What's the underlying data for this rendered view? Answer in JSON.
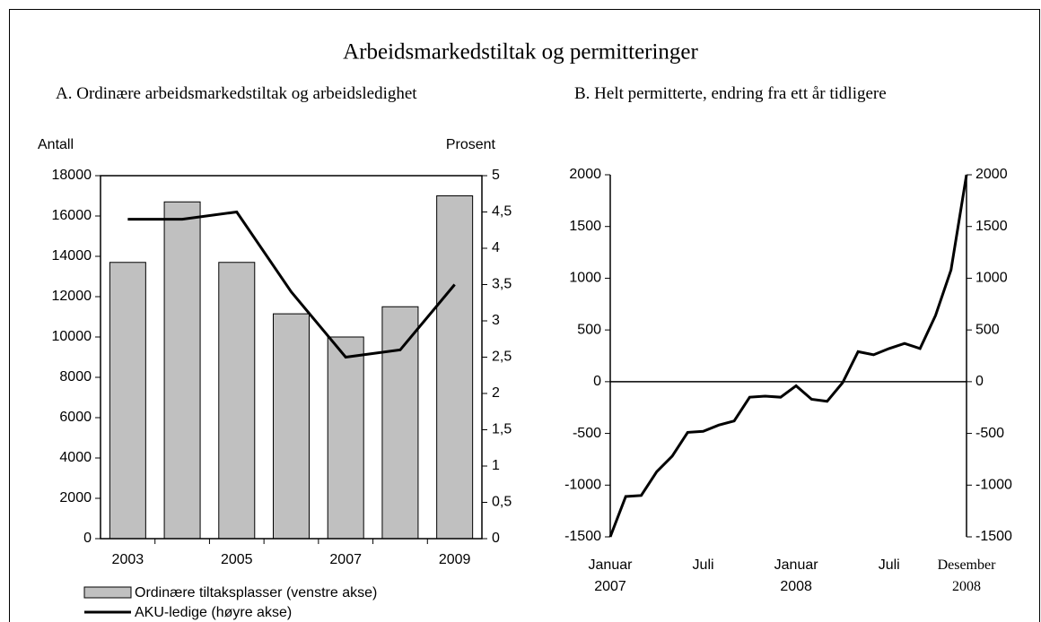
{
  "title": "Arbeidsmarkedstiltak og permitteringer",
  "chart_data": [
    {
      "type": "bar",
      "title": "A.  Ordinære arbeidsmarkedstiltak og arbeidsledighet",
      "ylabel": "Antall",
      "y2label": "Prosent",
      "categories": [
        "2003",
        null,
        "2005",
        null,
        "2007",
        null,
        "2009"
      ],
      "series": [
        {
          "name": "Ordinære tiltaksplasser (venstre akse)",
          "color": "#c0c0c0",
          "values": [
            13700,
            16700,
            13700,
            11150,
            10000,
            11500,
            17000
          ]
        },
        {
          "name": "AKU-ledige (høyre akse)",
          "color": "#000000",
          "axis": "y2",
          "values": [
            4.4,
            4.4,
            4.5,
            3.4,
            2.5,
            2.6,
            3.5
          ]
        }
      ],
      "ylim": [
        0,
        18000
      ],
      "yticks": [
        0,
        2000,
        4000,
        6000,
        8000,
        10000,
        12000,
        14000,
        16000,
        18000
      ],
      "y2lim": [
        0,
        5
      ],
      "y2ticks": [
        0,
        {
          "value": 0.5,
          "label": "0,5"
        },
        1,
        {
          "value": 1.5,
          "label": "1,5"
        },
        2,
        {
          "value": 2.5,
          "label": "2,5"
        },
        3,
        {
          "value": 3.5,
          "label": "3,5"
        },
        4,
        {
          "value": 4.5,
          "label": "4,5"
        },
        5
      ]
    },
    {
      "type": "line",
      "title": "B.  Helt permitterte, endring fra ett år tidligere",
      "categories": [
        "Januar\n2007",
        null,
        null,
        null,
        null,
        null,
        "Juli",
        null,
        null,
        null,
        null,
        null,
        "Januar\n2008",
        null,
        null,
        null,
        null,
        null,
        "Juli",
        null,
        null,
        null,
        null,
        "Desember\n2008"
      ],
      "values": [
        -1500,
        -1110,
        -1100,
        -870,
        -720,
        -490,
        -480,
        -420,
        -380,
        -150,
        -140,
        -150,
        -40,
        -170,
        -190,
        -10,
        290,
        260,
        320,
        370,
        320,
        640,
        1080,
        2000
      ],
      "color": "#000000",
      "ylim": [
        -1500,
        2000
      ],
      "yticks": [
        -1500,
        -1000,
        -500,
        0,
        500,
        1000,
        1500,
        2000
      ]
    }
  ]
}
